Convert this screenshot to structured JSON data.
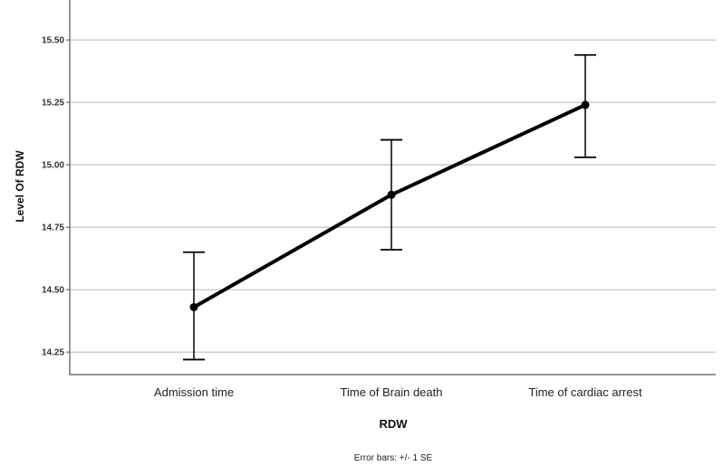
{
  "chart_data": {
    "type": "line",
    "xlabel": "RDW",
    "ylabel": "Level Of RDW",
    "footnote": "Error bars: +/- 1 SE",
    "categories": [
      "Admission time",
      "Time of Brain death",
      "Time of cardiac arrest"
    ],
    "y_ticks": [
      "14.25",
      "14.50",
      "14.75",
      "15.00",
      "15.25",
      "15.50"
    ],
    "ylim": [
      14.16,
      15.66
    ],
    "grid": true,
    "series": [
      {
        "values": [
          14.43,
          14.88,
          15.24
        ],
        "error_low": [
          14.22,
          14.66,
          15.03
        ],
        "error_high": [
          14.65,
          15.1,
          15.44
        ]
      }
    ],
    "colors": {
      "line": "#000000",
      "grid": "#c8c8c8",
      "axis": "#555555"
    }
  }
}
